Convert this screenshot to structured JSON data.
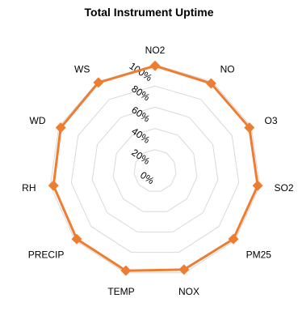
{
  "chart_data": {
    "type": "radar",
    "title": "Total Instrument Uptime",
    "categories": [
      "NO2",
      "NO",
      "O3",
      "SO2",
      "PM25",
      "NOX",
      "TEMP",
      "PRECIP",
      "RH",
      "WD",
      "WS"
    ],
    "values": [
      99,
      98,
      98,
      98,
      98,
      97,
      98,
      98,
      97,
      98,
      99
    ],
    "r_ticks": [
      "0%",
      "20%",
      "40%",
      "60%",
      "80%",
      "100%"
    ],
    "r_range": [
      0,
      100
    ],
    "grid": true,
    "legend": "none",
    "colors": {
      "series": "#ED7D31",
      "grid": "#D9D9D9"
    }
  }
}
